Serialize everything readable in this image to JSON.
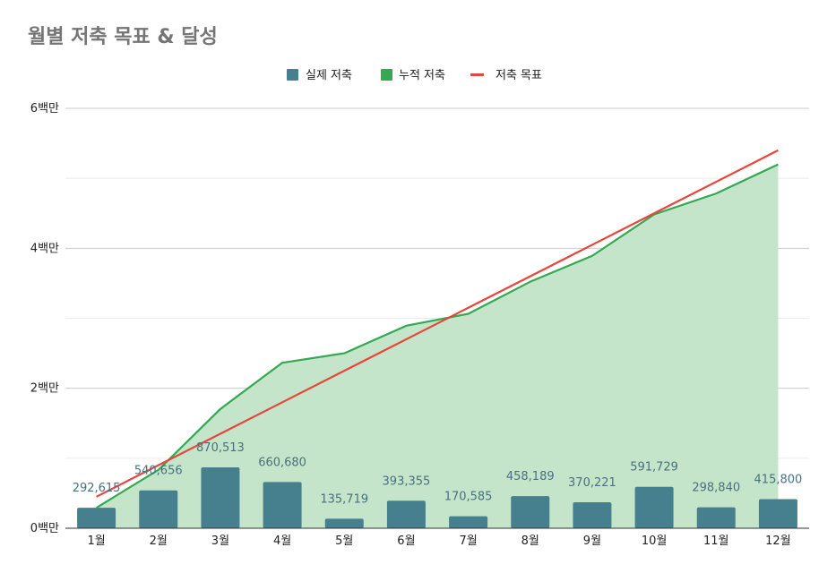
{
  "chart_data": {
    "type": "bar+line+area",
    "title": "월별 저축 목표 & 달성",
    "categories": [
      "1월",
      "2월",
      "3월",
      "4월",
      "5월",
      "6월",
      "7월",
      "8월",
      "9월",
      "10월",
      "11월",
      "12월"
    ],
    "y_ticks": [
      "0백만",
      "2백만",
      "4백만",
      "6백만"
    ],
    "y_tick_values": [
      0,
      2000000,
      4000000,
      6000000
    ],
    "ylim": [
      0,
      6000000
    ],
    "series": [
      {
        "name": "실제 저축",
        "type": "bar",
        "color": "#467f8d",
        "values": [
          292615,
          540656,
          870513,
          660680,
          135719,
          393355,
          170585,
          458189,
          370221,
          591729,
          298840,
          415800
        ],
        "labels": [
          "292,615",
          "540,656",
          "870,513",
          "660,680",
          "135,719",
          "393,355",
          "170,585",
          "458,189",
          "370,221",
          "591,729",
          "298,840",
          "415,800"
        ]
      },
      {
        "name": "누적 저축",
        "type": "area",
        "color": "#34a853",
        "fill": "#c4e5c9",
        "values": [
          292615,
          833271,
          1703784,
          2364464,
          2500183,
          2893538,
          3064123,
          3522312,
          3892533,
          4484262,
          4783102,
          5198902
        ]
      },
      {
        "name": "저축 목표",
        "type": "line",
        "color": "#e8453c",
        "values": [
          450000,
          900000,
          1350000,
          1800000,
          2250000,
          2700000,
          3150000,
          3600000,
          4050000,
          4500000,
          4950000,
          5400000
        ]
      }
    ],
    "legend_position": "top-center",
    "grid": true
  }
}
